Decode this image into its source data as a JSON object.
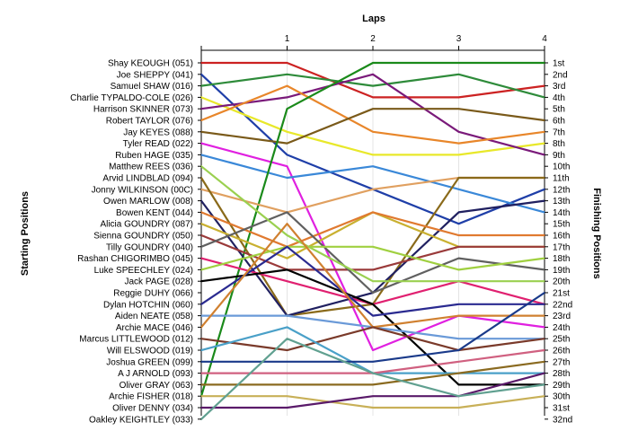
{
  "chart_data": {
    "type": "line",
    "title": "Laps",
    "ylabel_left": "Starting Positions",
    "ylabel_right": "Finishing Positions",
    "x": [
      0,
      1,
      2,
      3,
      4
    ],
    "x_tick_labels": [
      "1",
      "2",
      "3",
      "4"
    ],
    "riders": [
      "Shay KEOUGH (051)",
      "Joe SHEPPY (041)",
      "Samuel SHAW (016)",
      "Charlie TYPALDO-COLE (026)",
      "Harrison SKINNER (073)",
      "Robert TAYLOR (076)",
      "Jay KEYES (088)",
      "Tyler READ (022)",
      "Ruben HAGE (035)",
      "Matthew REES (036)",
      "Arvid LINDBLAD (094)",
      "Jonny WILKINSON (00C)",
      "Owen MARLOW (008)",
      "Bowen KENT (044)",
      "Alicia GOUNDRY (087)",
      "Sienna GOUNDRY (050)",
      "Tilly GOUNDRY (040)",
      "Rashan CHIGORIMBO (045)",
      "Luke SPEECHLEY (024)",
      "Jack PAGE (028)",
      "Reggie DUHY (066)",
      "Dylan HOTCHIN (060)",
      "Aiden NEATE (058)",
      "Archie MACE (046)",
      "Marcus LITTLEWOOD (012)",
      "Will ELSWOOD (019)",
      "Joshua GREEN (099)",
      "A J ARNOLD (093)",
      "Oliver GRAY (063)",
      "Archie FISHER (018)",
      "Oliver DENNY (034)",
      "Oakley KEIGHTLEY (033)"
    ],
    "finishing_labels": [
      "1st",
      "2nd",
      "3rd",
      "4th",
      "5th",
      "6th",
      "7th",
      "8th",
      "9th",
      "10th",
      "11th",
      "12th",
      "13th",
      "14th",
      "15th",
      "16th",
      "17th",
      "18th",
      "19th",
      "20th",
      "21st",
      "22nd",
      "23rd",
      "24th",
      "25th",
      "26th",
      "27th",
      "28th",
      "29th",
      "30th",
      "31st",
      "32nd"
    ],
    "series": [
      {
        "color": "#cc2222",
        "positions": [
          1,
          1,
          4,
          4,
          3
        ]
      },
      {
        "color": "#1f3fa8",
        "positions": [
          2,
          9,
          12,
          15,
          12
        ]
      },
      {
        "color": "#2e8b3a",
        "positions": [
          3,
          2,
          3,
          2,
          4
        ]
      },
      {
        "color": "#e8e82a",
        "positions": [
          4,
          7,
          9,
          9,
          8
        ]
      },
      {
        "color": "#7a1a7a",
        "positions": [
          5,
          4,
          2,
          7,
          9
        ]
      },
      {
        "color": "#e8862a",
        "positions": [
          6,
          3,
          7,
          8,
          7
        ]
      },
      {
        "color": "#7a5a1a",
        "positions": [
          7,
          8,
          5,
          5,
          6
        ]
      },
      {
        "color": "#e020e0",
        "positions": [
          8,
          10,
          26,
          23,
          24
        ]
      },
      {
        "color": "#3a88d8",
        "positions": [
          9,
          11,
          10,
          12,
          14
        ]
      },
      {
        "color": "#1a8a1a",
        "positions": [
          30,
          5,
          1,
          1,
          1
        ]
      },
      {
        "color": "#e0a060",
        "positions": [
          12,
          14,
          12,
          11,
          11
        ]
      },
      {
        "color": "#8a6a1a",
        "positions": [
          11,
          23,
          22,
          11,
          11
        ]
      },
      {
        "color": "#202060",
        "positions": [
          13,
          23,
          21,
          14,
          13
        ]
      },
      {
        "color": "#c9b030",
        "positions": [
          15,
          18,
          14,
          17,
          17
        ]
      },
      {
        "color": "#e07a30",
        "positions": [
          14,
          17,
          14,
          16,
          16
        ]
      },
      {
        "color": "#9a3a3a",
        "positions": [
          16,
          19,
          19,
          17,
          17
        ]
      },
      {
        "color": "#606060",
        "positions": [
          17,
          14,
          21,
          18,
          19
        ]
      },
      {
        "color": "#e02070",
        "positions": [
          18,
          20,
          22,
          20,
          22
        ]
      },
      {
        "color": "#a0d040",
        "positions": [
          19,
          17,
          17,
          19,
          18
        ]
      },
      {
        "color": "#000000",
        "positions": [
          20,
          19,
          22,
          29,
          29
        ]
      },
      {
        "color": "#9ad050",
        "positions": [
          10,
          16,
          20,
          20,
          20
        ]
      },
      {
        "color": "#2a2a90",
        "positions": [
          22,
          17,
          23,
          22,
          22
        ]
      },
      {
        "color": "#6a9ad8",
        "positions": [
          23,
          23,
          24,
          25,
          25
        ]
      },
      {
        "color": "#d08030",
        "positions": [
          24,
          15,
          24,
          23,
          23
        ]
      },
      {
        "color": "#7a3a2a",
        "positions": [
          25,
          26,
          24,
          26,
          25
        ]
      },
      {
        "color": "#4aa0c8",
        "positions": [
          26,
          24,
          28,
          28,
          28
        ]
      },
      {
        "color": "#1a3a8a",
        "positions": [
          27,
          27,
          27,
          26,
          21
        ]
      },
      {
        "color": "#d06080",
        "positions": [
          28,
          28,
          28,
          27,
          26
        ]
      },
      {
        "color": "#8a6a20",
        "positions": [
          29,
          29,
          29,
          28,
          27
        ]
      },
      {
        "color": "#c8b058",
        "positions": [
          30,
          30,
          31,
          31,
          30
        ]
      },
      {
        "color": "#5a1a6a",
        "positions": [
          31,
          31,
          30,
          30,
          28
        ]
      },
      {
        "color": "#60a090",
        "positions": [
          32,
          25,
          28,
          30,
          29
        ]
      }
    ]
  }
}
